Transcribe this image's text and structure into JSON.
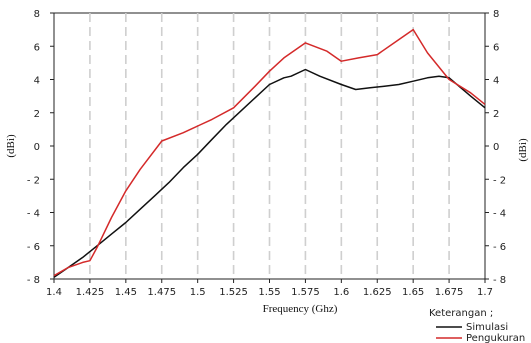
{
  "chart_data": {
    "type": "line",
    "xlabel": "Frequency (Ghz)",
    "ylabel": "(dBi)",
    "ylabel_right": "(dBi)",
    "xlim": [
      1.4,
      1.7
    ],
    "ylim": [
      -8,
      8
    ],
    "x_ticks": [
      "1.4",
      "1.425",
      "1.45",
      "1.475",
      "1.5",
      "1.525",
      "1.55",
      "1.575",
      "1.6",
      "1.625",
      "1.65",
      "1.675",
      "1.7"
    ],
    "x_tick_values": [
      1.4,
      1.425,
      1.45,
      1.475,
      1.5,
      1.525,
      1.55,
      1.575,
      1.6,
      1.625,
      1.65,
      1.675,
      1.7
    ],
    "y_ticks": [
      "8",
      "6",
      "4",
      "2",
      "0",
      "- 2",
      "- 4",
      "- 6",
      "- 8"
    ],
    "y_tick_values": [
      8,
      6,
      4,
      2,
      0,
      -2,
      -4,
      -6,
      -8
    ],
    "grid": {
      "vertical": true,
      "horizontal": false,
      "style": "dashed"
    },
    "legend": {
      "title": "Keterangan ;",
      "placement": "bottom-right"
    },
    "series": [
      {
        "name": "Simulasi",
        "color": "#111111",
        "x": [
          1.4,
          1.41,
          1.42,
          1.43,
          1.44,
          1.45,
          1.46,
          1.47,
          1.48,
          1.49,
          1.5,
          1.51,
          1.52,
          1.53,
          1.54,
          1.55,
          1.56,
          1.565,
          1.575,
          1.585,
          1.6,
          1.61,
          1.62,
          1.63,
          1.64,
          1.65,
          1.66,
          1.668,
          1.675,
          1.69,
          1.7
        ],
        "y": [
          -7.9,
          -7.3,
          -6.7,
          -6.0,
          -5.3,
          -4.6,
          -3.8,
          -3.0,
          -2.2,
          -1.3,
          -0.5,
          0.4,
          1.3,
          2.1,
          2.9,
          3.7,
          4.1,
          4.2,
          4.6,
          4.2,
          3.7,
          3.4,
          3.5,
          3.6,
          3.7,
          3.9,
          4.1,
          4.2,
          4.1,
          3.0,
          2.3
        ]
      },
      {
        "name": "Pengukuran",
        "color": "#d42a2a",
        "x": [
          1.4,
          1.41,
          1.42,
          1.425,
          1.43,
          1.44,
          1.45,
          1.46,
          1.475,
          1.49,
          1.5,
          1.51,
          1.525,
          1.54,
          1.55,
          1.56,
          1.575,
          1.59,
          1.6,
          1.612,
          1.625,
          1.64,
          1.65,
          1.66,
          1.675,
          1.69,
          1.7
        ],
        "y": [
          -7.8,
          -7.3,
          -7.0,
          -6.9,
          -6.1,
          -4.3,
          -2.7,
          -1.4,
          0.3,
          0.8,
          1.2,
          1.6,
          2.3,
          3.6,
          4.5,
          5.3,
          6.2,
          5.7,
          5.1,
          5.3,
          5.5,
          6.4,
          7.0,
          5.6,
          4.0,
          3.2,
          2.5
        ]
      }
    ]
  }
}
